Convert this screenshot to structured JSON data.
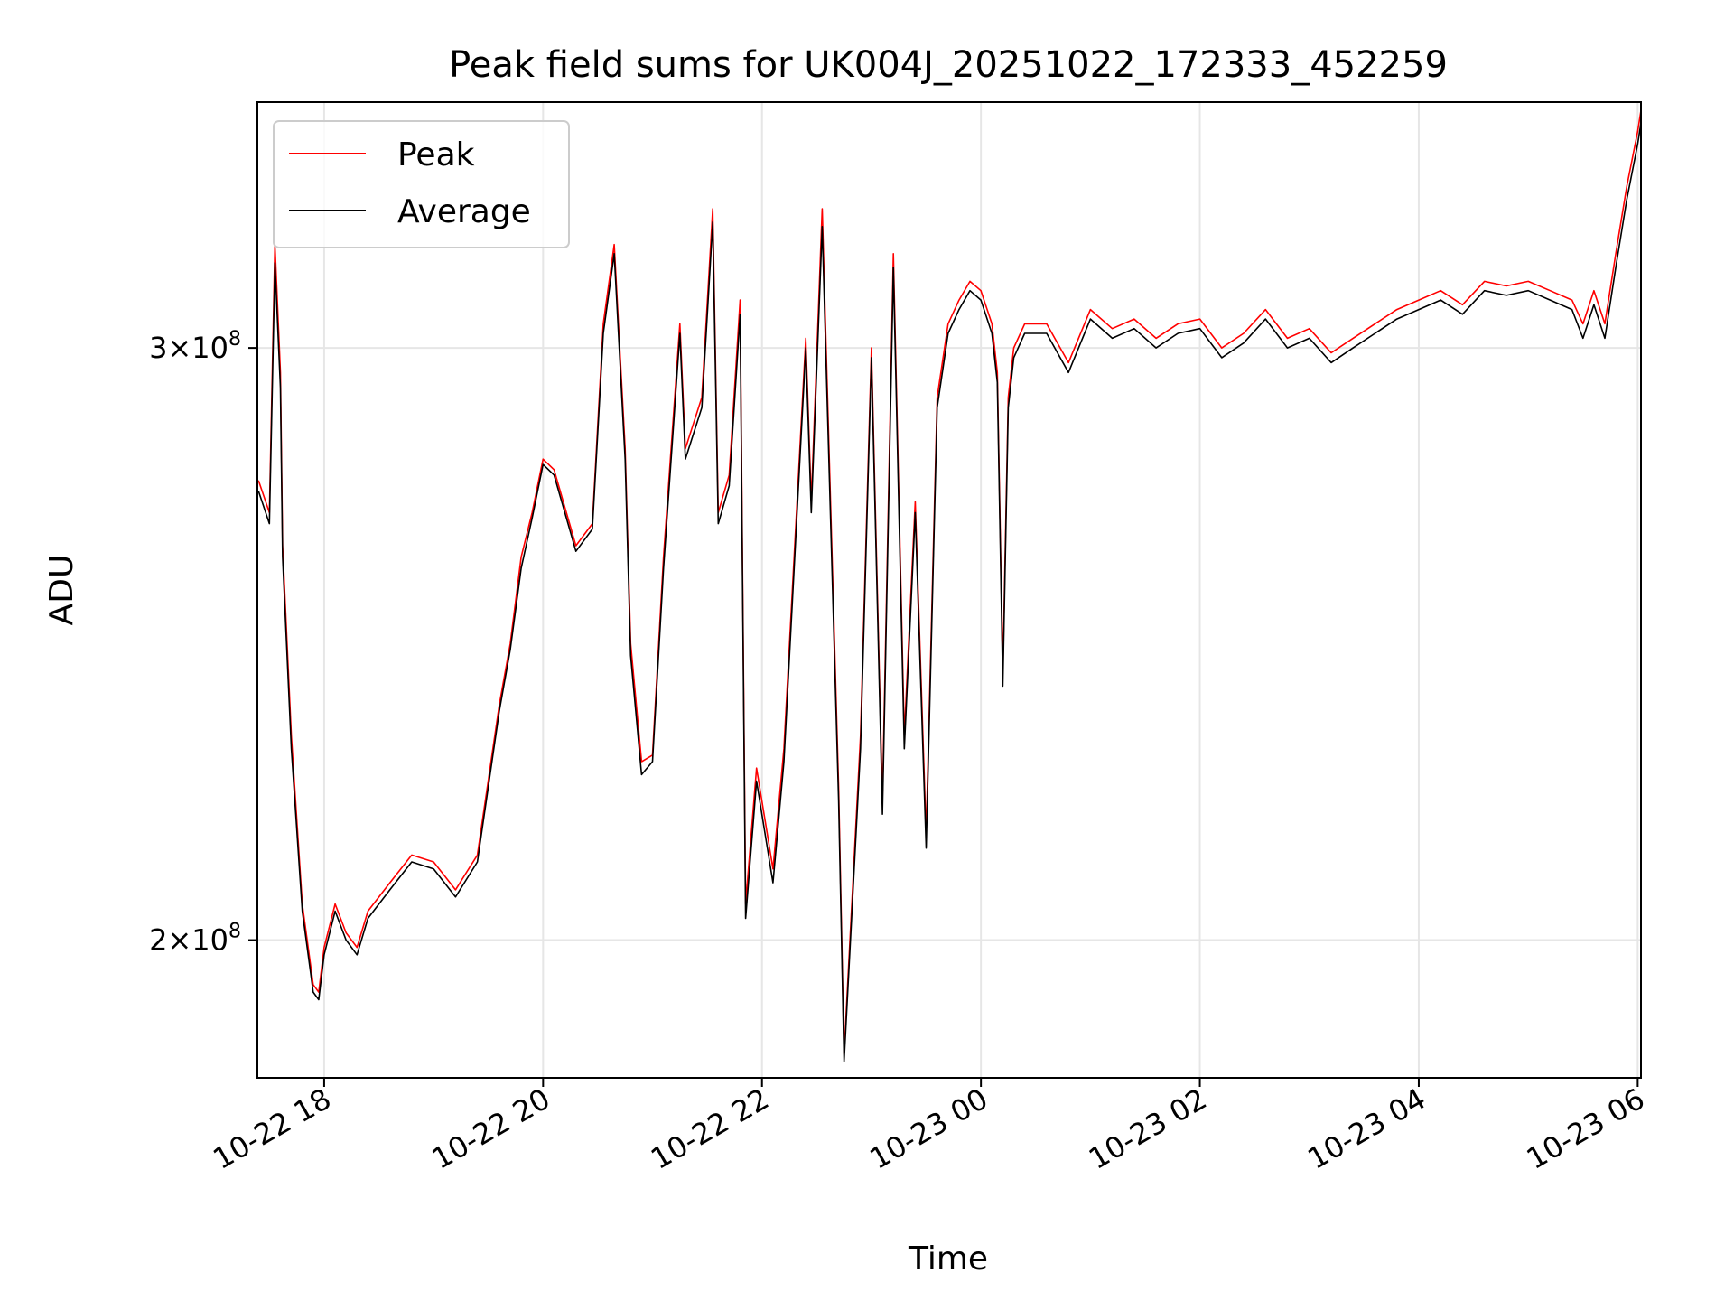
{
  "chart_data": {
    "type": "line",
    "title": "Peak field sums for UK004J_20251022_172333_452259",
    "xlabel": "Time",
    "ylabel": "ADU",
    "x_unit": "hours since 10-22 00:00",
    "xlim": [
      17.39,
      30.03
    ],
    "ylim": [
      182000000.0,
      355000000.0
    ],
    "y_scale": "log",
    "grid": true,
    "legend_position": "top-left",
    "x_ticks": [
      {
        "value": 18,
        "label": "10-22 18"
      },
      {
        "value": 20,
        "label": "10-22 20"
      },
      {
        "value": 22,
        "label": "10-22 22"
      },
      {
        "value": 24,
        "label": "10-23 00"
      },
      {
        "value": 26,
        "label": "10-23 02"
      },
      {
        "value": 28,
        "label": "10-23 04"
      },
      {
        "value": 30,
        "label": "10-23 06"
      }
    ],
    "y_ticks": [
      {
        "value": 200000000.0,
        "label_base": "2×10",
        "label_exp": "8"
      },
      {
        "value": 300000000.0,
        "label_base": "3×10",
        "label_exp": "8"
      }
    ],
    "x": [
      17.4,
      17.5,
      17.55,
      17.6,
      17.62,
      17.7,
      17.8,
      17.9,
      17.95,
      18.0,
      18.1,
      18.2,
      18.3,
      18.4,
      18.6,
      18.8,
      19.0,
      19.2,
      19.4,
      19.6,
      19.7,
      19.8,
      19.9,
      20.0,
      20.1,
      20.3,
      20.45,
      20.55,
      20.65,
      20.75,
      20.8,
      20.9,
      21.0,
      21.1,
      21.25,
      21.3,
      21.45,
      21.55,
      21.6,
      21.7,
      21.8,
      21.85,
      21.95,
      22.1,
      22.2,
      22.4,
      22.45,
      22.55,
      22.7,
      22.75,
      22.9,
      23.0,
      23.1,
      23.2,
      23.3,
      23.4,
      23.5,
      23.6,
      23.7,
      23.8,
      23.9,
      24.0,
      24.1,
      24.15,
      24.2,
      24.25,
      24.3,
      24.4,
      24.6,
      24.8,
      25.0,
      25.2,
      25.4,
      25.6,
      25.8,
      26.0,
      26.2,
      26.4,
      26.6,
      26.8,
      27.0,
      27.2,
      27.4,
      27.6,
      27.8,
      28.0,
      28.2,
      28.4,
      28.6,
      28.8,
      29.0,
      29.2,
      29.4,
      29.5,
      29.6,
      29.7,
      29.8,
      29.9,
      30.0,
      30.03
    ],
    "series": [
      {
        "name": "Peak",
        "color": "#ff0000",
        "values": [
          274000000.0,
          268000000.0,
          322000000.0,
          295000000.0,
          262000000.0,
          230000000.0,
          205000000.0,
          194000000.0,
          193000000.0,
          199000000.0,
          205000000.0,
          201000000.0,
          199000000.0,
          204000000.0,
          208000000.0,
          212000000.0,
          211000000.0,
          207000000.0,
          212000000.0,
          235000000.0,
          245000000.0,
          260000000.0,
          268000000.0,
          278000000.0,
          276000000.0,
          262000000.0,
          266000000.0,
          305000000.0,
          322000000.0,
          280000000.0,
          245000000.0,
          226000000.0,
          227000000.0,
          260000000.0,
          305000000.0,
          280000000.0,
          290000000.0,
          330000000.0,
          268000000.0,
          275000000.0,
          310000000.0,
          205000000.0,
          225000000.0,
          210000000.0,
          228000000.0,
          302000000.0,
          270000000.0,
          330000000.0,
          222000000.0,
          185000000.0,
          230000000.0,
          300000000.0,
          220000000.0,
          320000000.0,
          230000000.0,
          270000000.0,
          215000000.0,
          290000000.0,
          305000000.0,
          310000000.0,
          314000000.0,
          312000000.0,
          305000000.0,
          295000000.0,
          240000000.0,
          290000000.0,
          300000000.0,
          305000000.0,
          305000000.0,
          297000000.0,
          308000000.0,
          304000000.0,
          306000000.0,
          302000000.0,
          305000000.0,
          306000000.0,
          300000000.0,
          303000000.0,
          308000000.0,
          302000000.0,
          304000000.0,
          299000000.0,
          302000000.0,
          305000000.0,
          308000000.0,
          310000000.0,
          312000000.0,
          309000000.0,
          314000000.0,
          313000000.0,
          314000000.0,
          312000000.0,
          310000000.0,
          305000000.0,
          312000000.0,
          305000000.0,
          320000000.0,
          335000000.0,
          348000000.0,
          353000000.0
        ]
      },
      {
        "name": "Average",
        "color": "#000000",
        "values": [
          272000000.0,
          266000000.0,
          318000000.0,
          292000000.0,
          260000000.0,
          228000000.0,
          204000000.0,
          193000000.0,
          192000000.0,
          198000000.0,
          204000000.0,
          200000000.0,
          198000000.0,
          203000000.0,
          207000000.0,
          211000000.0,
          210000000.0,
          206000000.0,
          211000000.0,
          234000000.0,
          244000000.0,
          258000000.0,
          267000000.0,
          277000000.0,
          275000000.0,
          261000000.0,
          265000000.0,
          303000000.0,
          320000000.0,
          278000000.0,
          243000000.0,
          224000000.0,
          226000000.0,
          258000000.0,
          303000000.0,
          278000000.0,
          288000000.0,
          327000000.0,
          266000000.0,
          273000000.0,
          307000000.0,
          203000000.0,
          223000000.0,
          208000000.0,
          226000000.0,
          300000000.0,
          268000000.0,
          326000000.0,
          220000000.0,
          184000000.0,
          228000000.0,
          298000000.0,
          218000000.0,
          317000000.0,
          228000000.0,
          268000000.0,
          213000000.0,
          288000000.0,
          303000000.0,
          308000000.0,
          312000000.0,
          310000000.0,
          303000000.0,
          293000000.0,
          238000000.0,
          288000000.0,
          298000000.0,
          303000000.0,
          303000000.0,
          295000000.0,
          306000000.0,
          302000000.0,
          304000000.0,
          300000000.0,
          303000000.0,
          304000000.0,
          298000000.0,
          301000000.0,
          306000000.0,
          300000000.0,
          302000000.0,
          297000000.0,
          300000000.0,
          303000000.0,
          306000000.0,
          308000000.0,
          310000000.0,
          307000000.0,
          312000000.0,
          311000000.0,
          312000000.0,
          310000000.0,
          308000000.0,
          302000000.0,
          309000000.0,
          302000000.0,
          317000000.0,
          332000000.0,
          345000000.0,
          350000000.0
        ]
      }
    ]
  }
}
